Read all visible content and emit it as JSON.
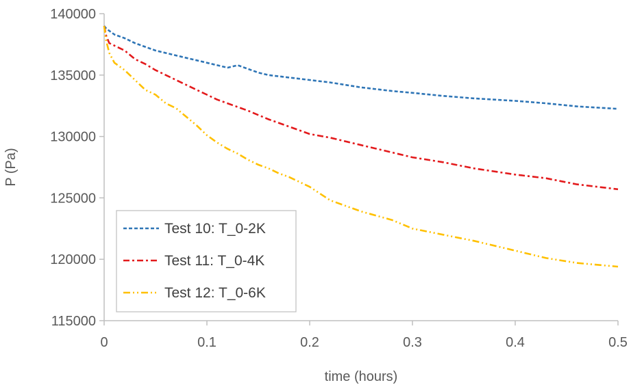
{
  "chart_data": {
    "type": "line",
    "title": "",
    "xlabel": "time (hours)",
    "ylabel": "P (Pa)",
    "xlim": [
      0,
      0.5
    ],
    "ylim": [
      115000,
      140000
    ],
    "xticks": [
      0,
      0.1,
      0.2,
      0.3,
      0.4,
      0.5
    ],
    "xtick_labels": [
      "0",
      "0.1",
      "0.2",
      "0.3",
      "0.4",
      "0.5"
    ],
    "yticks": [
      115000,
      120000,
      125000,
      130000,
      135000,
      140000
    ],
    "ytick_labels": [
      "115000",
      "120000",
      "125000",
      "130000",
      "135000",
      "140000"
    ],
    "grid": {
      "vertical": false,
      "horizontal": false
    },
    "legend": {
      "placement": "bottom-left",
      "boxed": true
    },
    "series": [
      {
        "name": "Test 10: T_0-2K",
        "color": "#2E75B6",
        "dash": "dashed",
        "x": [
          0,
          0.002,
          0.005,
          0.01,
          0.02,
          0.03,
          0.04,
          0.05,
          0.06,
          0.07,
          0.08,
          0.09,
          0.1,
          0.11,
          0.12,
          0.13,
          0.14,
          0.15,
          0.16,
          0.17,
          0.18,
          0.2,
          0.22,
          0.25,
          0.28,
          0.3,
          0.33,
          0.36,
          0.4,
          0.43,
          0.46,
          0.5
        ],
        "y": [
          139000,
          138800,
          138600,
          138300,
          138000,
          137600,
          137300,
          137000,
          136800,
          136600,
          136400,
          136200,
          136000,
          135800,
          135600,
          135800,
          135500,
          135200,
          135000,
          134900,
          134800,
          134600,
          134400,
          134000,
          133700,
          133550,
          133300,
          133100,
          132900,
          132700,
          132450,
          132250
        ]
      },
      {
        "name": "Test 11: T_0-4K",
        "color": "#E31A1C",
        "dash": "dash-dot",
        "x": [
          0,
          0.002,
          0.005,
          0.01,
          0.02,
          0.03,
          0.04,
          0.05,
          0.06,
          0.07,
          0.08,
          0.09,
          0.1,
          0.11,
          0.12,
          0.14,
          0.16,
          0.18,
          0.2,
          0.22,
          0.25,
          0.28,
          0.3,
          0.33,
          0.36,
          0.4,
          0.43,
          0.46,
          0.5
        ],
        "y": [
          139000,
          138200,
          137600,
          137400,
          137000,
          136300,
          135900,
          135400,
          135000,
          134600,
          134200,
          133800,
          133400,
          133000,
          132700,
          132100,
          131400,
          130800,
          130200,
          129900,
          129300,
          128700,
          128300,
          127900,
          127400,
          126900,
          126600,
          126100,
          125700
        ]
      },
      {
        "name": "Test 12: T_0-6K",
        "color": "#FFC000",
        "dash": "dash-dot-dot",
        "x": [
          0,
          0.002,
          0.005,
          0.01,
          0.02,
          0.03,
          0.04,
          0.05,
          0.06,
          0.07,
          0.08,
          0.09,
          0.1,
          0.11,
          0.12,
          0.13,
          0.14,
          0.15,
          0.16,
          0.17,
          0.18,
          0.2,
          0.22,
          0.25,
          0.28,
          0.3,
          0.33,
          0.36,
          0.4,
          0.43,
          0.46,
          0.5
        ],
        "y": [
          139000,
          137800,
          136800,
          136000,
          135400,
          134600,
          133800,
          133400,
          132700,
          132300,
          131600,
          130900,
          130100,
          129500,
          129000,
          128600,
          128100,
          127700,
          127400,
          127000,
          126700,
          125900,
          124800,
          123900,
          123200,
          122500,
          122000,
          121500,
          120700,
          120100,
          119700,
          119400
        ]
      }
    ]
  }
}
